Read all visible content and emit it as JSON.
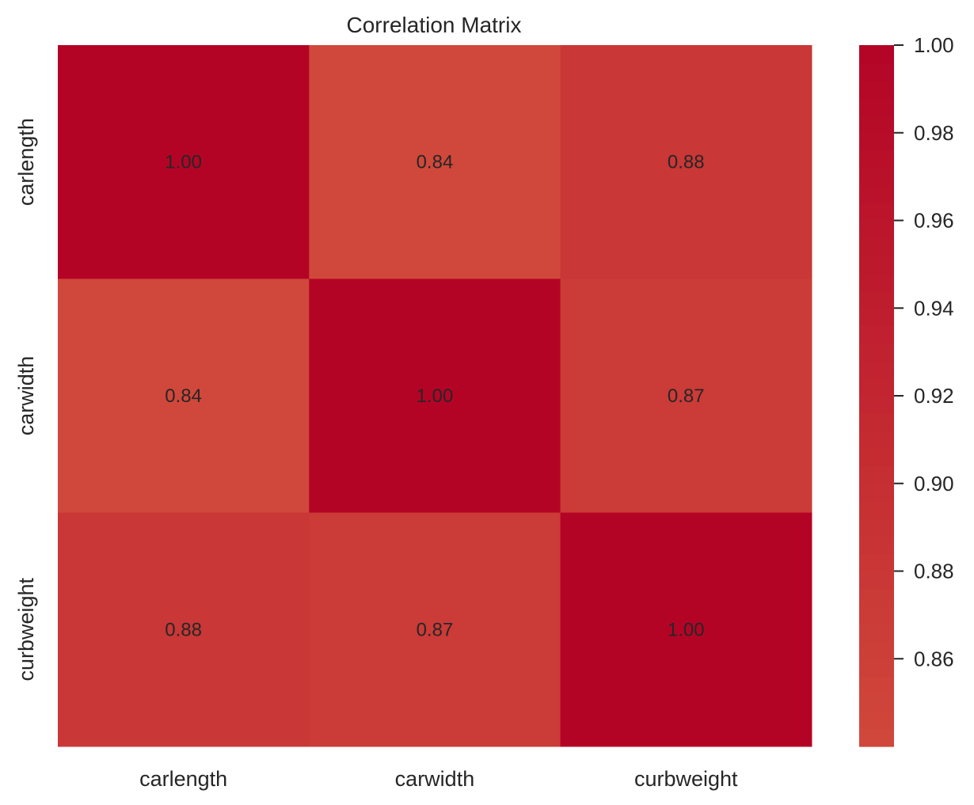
{
  "chart_data": {
    "type": "heatmap",
    "title": "Correlation Matrix",
    "x_labels": [
      "carlength",
      "carwidth",
      "curbweight"
    ],
    "y_labels": [
      "carlength",
      "carwidth",
      "curbweight"
    ],
    "values": [
      [
        1.0,
        0.84,
        0.88
      ],
      [
        0.84,
        1.0,
        0.87
      ],
      [
        0.88,
        0.87,
        1.0
      ]
    ],
    "cell_labels": [
      [
        "1.00",
        "0.84",
        "0.88"
      ],
      [
        "0.84",
        "1.00",
        "0.87"
      ],
      [
        "0.88",
        "0.87",
        "1.00"
      ]
    ],
    "colorbar": {
      "ticks": [
        "0.86",
        "0.88",
        "0.90",
        "0.92",
        "0.94",
        "0.96",
        "0.98",
        "1.00"
      ],
      "tick_values": [
        0.86,
        0.88,
        0.9,
        0.92,
        0.94,
        0.96,
        0.98,
        1.0
      ],
      "range": [
        0.84,
        1.0
      ],
      "color_low": "#d0483b",
      "color_high": "#b40426"
    },
    "colormap": "coolwarm (upper range)",
    "grid": false
  }
}
